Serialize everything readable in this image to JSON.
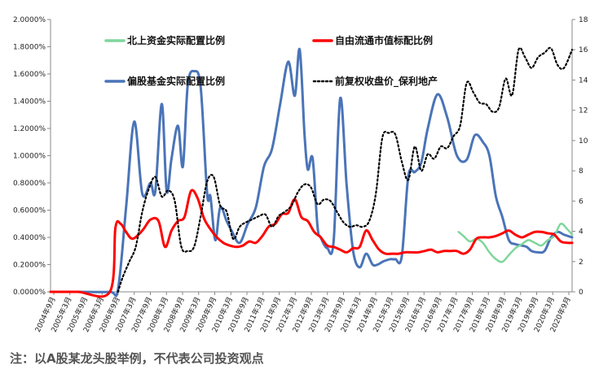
{
  "chart_data": {
    "type": "line",
    "note": "注：以A股某龙头股举例，不代表公司投资观点",
    "y_left": {
      "ticks": [
        "0.0000%",
        "0.2000%",
        "0.4000%",
        "0.6000%",
        "0.8000%",
        "1.0000%",
        "1.2000%",
        "1.4000%",
        "1.6000%",
        "1.8000%",
        "2.0000%"
      ],
      "range": [
        0,
        2.0
      ]
    },
    "y_right": {
      "ticks": [
        "0",
        "2",
        "4",
        "6",
        "8",
        "10",
        "12",
        "14",
        "16",
        "18"
      ],
      "range": [
        0,
        18
      ]
    },
    "x_ticks": [
      "2004年9月",
      "2005年3月",
      "2005年9月",
      "2006年3月",
      "2006年9月",
      "2007年3月",
      "2007年9月",
      "2008年3月",
      "2008年9月",
      "2009年3月",
      "2009年9月",
      "2010年3月",
      "2010年9月",
      "2011年3月",
      "2011年9月",
      "2012年3月",
      "2012年9月",
      "2013年3月",
      "2013年9月",
      "2014年3月",
      "2014年9月",
      "2015年3月",
      "2015年9月",
      "2016年3月",
      "2016年9月",
      "2017年3月",
      "2017年9月",
      "2018年3月",
      "2018年9月",
      "2019年3月",
      "2019年9月",
      "2020年3月",
      "2020年9月"
    ],
    "x_range": [
      2004.67,
      2020.75
    ],
    "legend": {
      "placement": "top",
      "items": [
        {
          "name": "北上资金实际配置比例",
          "color": "#7fd69b",
          "style": "solid"
        },
        {
          "name": "自由流通市值标配比例",
          "color": "#ff0000",
          "style": "solid"
        },
        {
          "name": "偏股基金实际配置比例",
          "color": "#4a74b8",
          "style": "solid"
        },
        {
          "name": "前复权收盘价_保利地产",
          "color": "#000000",
          "style": "dotted"
        }
      ]
    },
    "series": [
      {
        "name": "北上资金实际配置比例",
        "axis": "left",
        "color": "#7fd69b",
        "x": [
          2017.25,
          2017.4,
          2017.6,
          2017.8,
          2018.0,
          2018.2,
          2018.4,
          2018.6,
          2018.8,
          2019.0,
          2019.2,
          2019.4,
          2019.6,
          2019.8,
          2020.0,
          2020.2,
          2020.4,
          2020.6,
          2020.75
        ],
        "y": [
          0.44,
          0.41,
          0.37,
          0.39,
          0.36,
          0.29,
          0.24,
          0.22,
          0.27,
          0.32,
          0.35,
          0.38,
          0.36,
          0.34,
          0.38,
          0.41,
          0.5,
          0.46,
          0.42
        ]
      },
      {
        "name": "自由流通市值标配比例",
        "axis": "left",
        "color": "#ff0000",
        "x": [
          2004.67,
          2005.5,
          2006.5,
          2006.67,
          2006.83,
          2007.0,
          2007.2,
          2007.5,
          2007.75,
          2008.0,
          2008.2,
          2008.4,
          2008.6,
          2008.8,
          2009.0,
          2009.2,
          2009.4,
          2009.6,
          2009.8,
          2010.0,
          2010.2,
          2010.4,
          2010.6,
          2010.8,
          2011.0,
          2011.2,
          2011.4,
          2011.6,
          2011.8,
          2012.0,
          2012.2,
          2012.4,
          2012.6,
          2012.8,
          2013.0,
          2013.2,
          2013.4,
          2013.6,
          2013.8,
          2014.0,
          2014.2,
          2014.4,
          2014.6,
          2014.8,
          2015.0,
          2015.2,
          2015.4,
          2015.6,
          2015.8,
          2016.0,
          2016.2,
          2016.4,
          2016.6,
          2016.8,
          2017.0,
          2017.2,
          2017.4,
          2017.6,
          2017.8,
          2018.0,
          2018.2,
          2018.4,
          2018.6,
          2018.8,
          2019.0,
          2019.2,
          2019.4,
          2019.6,
          2019.8,
          2020.0,
          2020.2,
          2020.4,
          2020.6,
          2020.75
        ],
        "y": [
          0,
          0,
          0,
          0.47,
          0.5,
          0.44,
          0.39,
          0.45,
          0.53,
          0.52,
          0.33,
          0.45,
          0.52,
          0.55,
          0.74,
          0.69,
          0.54,
          0.46,
          0.4,
          0.36,
          0.34,
          0.33,
          0.34,
          0.37,
          0.36,
          0.41,
          0.48,
          0.5,
          0.57,
          0.58,
          0.68,
          0.55,
          0.52,
          0.44,
          0.4,
          0.34,
          0.33,
          0.31,
          0.29,
          0.32,
          0.33,
          0.45,
          0.38,
          0.31,
          0.28,
          0.28,
          0.28,
          0.29,
          0.29,
          0.29,
          0.3,
          0.31,
          0.29,
          0.3,
          0.3,
          0.3,
          0.28,
          0.31,
          0.39,
          0.4,
          0.4,
          0.41,
          0.43,
          0.45,
          0.42,
          0.4,
          0.42,
          0.44,
          0.44,
          0.43,
          0.42,
          0.37,
          0.36,
          0.36
        ]
      },
      {
        "name": "偏股基金实际配置比例",
        "axis": "left",
        "color": "#4a74b8",
        "x": [
          2004.67,
          2005.5,
          2006.5,
          2006.75,
          2007.0,
          2007.25,
          2007.5,
          2007.75,
          2007.9,
          2008.1,
          2008.25,
          2008.4,
          2008.6,
          2008.75,
          2008.9,
          2009.1,
          2009.3,
          2009.5,
          2009.6,
          2009.75,
          2009.9,
          2010.1,
          2010.25,
          2010.5,
          2010.75,
          2011.0,
          2011.25,
          2011.5,
          2011.75,
          2012.0,
          2012.2,
          2012.35,
          2012.5,
          2012.6,
          2012.75,
          2012.9,
          2013.0,
          2013.2,
          2013.4,
          2013.6,
          2013.8,
          2014.0,
          2014.2,
          2014.4,
          2014.6,
          2014.75,
          2014.9,
          2015.0,
          2015.15,
          2015.3,
          2015.5,
          2015.7,
          2015.9,
          2016.1,
          2016.3,
          2016.6,
          2016.9,
          2017.2,
          2017.5,
          2017.75,
          2018.0,
          2018.2,
          2018.4,
          2018.6,
          2018.8,
          2019.0,
          2019.2,
          2019.35,
          2019.5,
          2019.7,
          2019.9,
          2020.1,
          2020.3,
          2020.5,
          2020.75
        ],
        "y": [
          0,
          0,
          0,
          0.02,
          0.62,
          1.25,
          0.72,
          0.8,
          0.74,
          1.38,
          0.74,
          0.98,
          1.22,
          0.92,
          1.52,
          1.62,
          1.5,
          0.72,
          0.7,
          0.38,
          0.62,
          0.52,
          0.45,
          0.36,
          0.5,
          0.62,
          0.92,
          1.05,
          1.38,
          1.69,
          1.44,
          1.78,
          1.16,
          0.9,
          0.98,
          0.48,
          0.4,
          0.32,
          0.38,
          1.42,
          0.78,
          0.3,
          0.18,
          0.28,
          0.2,
          0.2,
          0.22,
          0.23,
          0.24,
          0.24,
          0.26,
          0.85,
          0.88,
          0.95,
          1.2,
          1.45,
          1.28,
          1.0,
          0.97,
          1.15,
          1.1,
          1.0,
          0.7,
          0.55,
          0.38,
          0.35,
          0.34,
          0.33,
          0.3,
          0.29,
          0.3,
          0.4,
          0.44,
          0.42,
          0.4
        ]
      },
      {
        "name": "前复权收盘价_保利地产",
        "axis": "right",
        "color": "#000000",
        "x": [
          2006.75,
          2006.9,
          2007.1,
          2007.3,
          2007.5,
          2007.7,
          2007.9,
          2008.1,
          2008.3,
          2008.5,
          2008.7,
          2008.9,
          2009.1,
          2009.3,
          2009.5,
          2009.7,
          2009.9,
          2010.1,
          2010.3,
          2010.5,
          2010.7,
          2010.9,
          2011.1,
          2011.3,
          2011.5,
          2011.7,
          2011.9,
          2012.1,
          2012.3,
          2012.5,
          2012.7,
          2012.9,
          2013.1,
          2013.3,
          2013.5,
          2013.7,
          2013.9,
          2014.1,
          2014.3,
          2014.5,
          2014.7,
          2014.9,
          2015.1,
          2015.3,
          2015.5,
          2015.7,
          2015.9,
          2016.1,
          2016.3,
          2016.5,
          2016.7,
          2016.9,
          2017.1,
          2017.3,
          2017.5,
          2017.7,
          2017.9,
          2018.1,
          2018.3,
          2018.5,
          2018.7,
          2018.9,
          2019.1,
          2019.3,
          2019.5,
          2019.7,
          2019.9,
          2020.1,
          2020.3,
          2020.5,
          2020.75
        ],
        "y": [
          0,
          1.0,
          2.0,
          3.0,
          5.3,
          6.8,
          7.6,
          6.3,
          6.7,
          6.0,
          3.0,
          2.7,
          3.0,
          5.0,
          7.3,
          7.6,
          5.7,
          5.3,
          3.5,
          4.3,
          4.6,
          4.8,
          5.0,
          5.1,
          4.3,
          5.0,
          5.3,
          5.7,
          6.6,
          7.1,
          6.9,
          5.8,
          6.1,
          6.0,
          5.3,
          4.6,
          4.3,
          4.4,
          4.3,
          4.7,
          6.5,
          10.2,
          10.5,
          10.4,
          8.6,
          7.4,
          9.6,
          8.0,
          9.1,
          8.8,
          9.6,
          9.5,
          10.3,
          11.0,
          13.8,
          13.2,
          12.5,
          12.4,
          11.9,
          12.2,
          14.1,
          13.0,
          16.0,
          15.5,
          14.8,
          15.5,
          15.8,
          16.1,
          15.0,
          14.8,
          16.0
        ]
      }
    ]
  }
}
